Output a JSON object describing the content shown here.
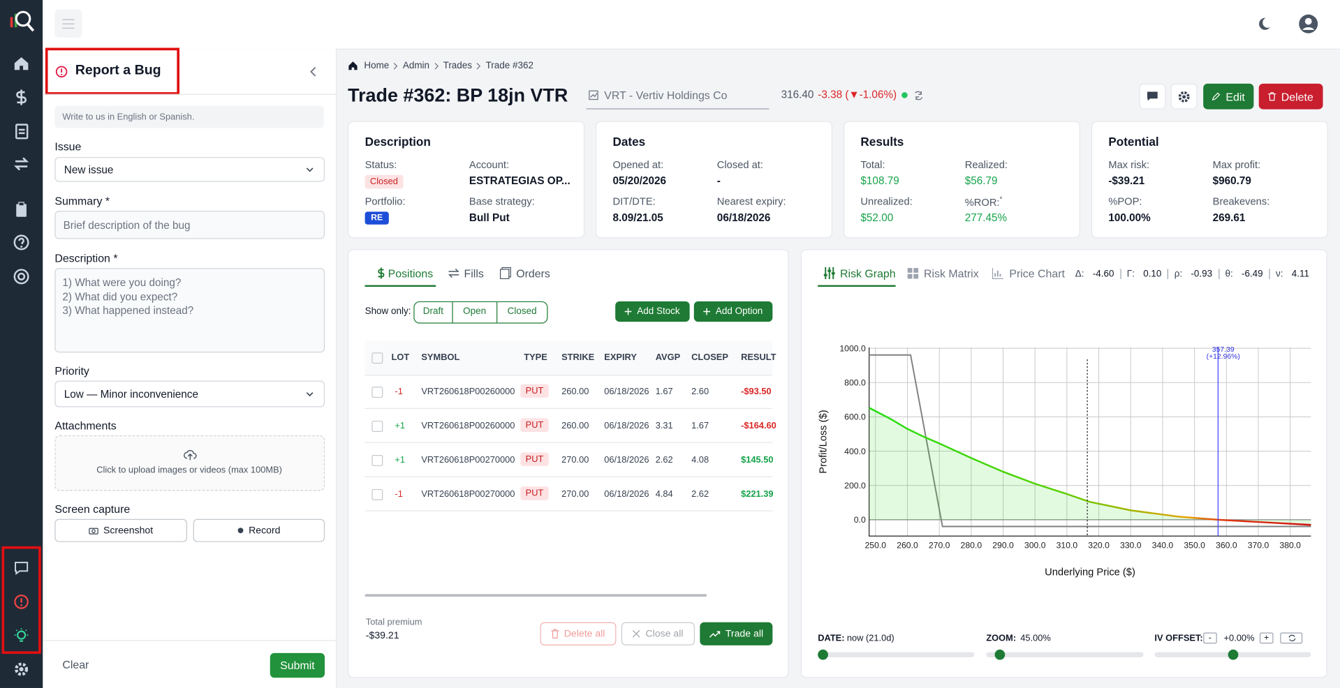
{
  "bug_panel": {
    "title": "Report a Bug",
    "hint": "Write to us in English or Spanish.",
    "issue_label": "Issue",
    "issue_value": "New issue",
    "summary_label": "Summary *",
    "summary_placeholder": "Brief description of the bug",
    "description_label": "Description *",
    "description_placeholder": [
      "1) What were you doing?",
      "2) What did you expect?",
      "3) What happened instead?"
    ],
    "priority_label": "Priority",
    "priority_value": "Low — Minor inconvenience",
    "attachments_label": "Attachments",
    "upload_text": "Click to upload images or videos (max 100MB)",
    "screen_capture_label": "Screen capture",
    "screenshot_button": "Screenshot",
    "record_button": "Record",
    "clear_button": "Clear",
    "submit_button": "Submit"
  },
  "breadcrumb": [
    "Home",
    "Admin",
    "Trades",
    "Trade #362"
  ],
  "trade": {
    "title": "Trade #362: BP 18jn VTR",
    "symbol": "VRT - Vertiv Holdings Co",
    "price": "316.40",
    "change": "-3.38 (▼-1.06%)",
    "edit": "Edit",
    "delete": "Delete"
  },
  "cards": [
    {
      "title": "Description",
      "fields": [
        {
          "label": "Status:",
          "value": "Closed"
        },
        {
          "label": "Account:",
          "value": "ESTRATEGIAS OP..."
        },
        {
          "label": "Portfolio:",
          "value": "RE"
        },
        {
          "label": "Base strategy:",
          "value": "Bull Put"
        }
      ]
    },
    {
      "title": "Dates",
      "fields": [
        {
          "label": "Opened at:",
          "value": "05/20/2026"
        },
        {
          "label": "Closed at:",
          "value": "-"
        },
        {
          "label": "DIT/DTE:",
          "value": "8.09/21.05"
        },
        {
          "label": "Nearest expiry:",
          "value": "06/18/2026"
        }
      ]
    },
    {
      "title": "Results",
      "fields": [
        {
          "label": "Total:",
          "value": "$108.79"
        },
        {
          "label": "Realized:",
          "value": "$56.79"
        },
        {
          "label": "Unrealized:",
          "value": "$52.00"
        },
        {
          "label": "%ROR:",
          "note": "*",
          "value": "277.45%"
        }
      ]
    },
    {
      "title": "Potential",
      "fields": [
        {
          "label": "Max risk:",
          "value": "-$39.21"
        },
        {
          "label": "Max profit:",
          "value": "$960.79"
        },
        {
          "label": "%POP:",
          "value": "100.00%"
        },
        {
          "label": "Breakevens:",
          "value": "269.61"
        }
      ]
    }
  ],
  "positions": {
    "tabs": [
      "Positions",
      "Fills",
      "Orders"
    ],
    "show_only_label": "Show only:",
    "filters": [
      "Draft",
      "Open",
      "Closed"
    ],
    "add_stock": "Add Stock",
    "add_option": "Add Option",
    "columns": [
      "LOT",
      "SYMBOL",
      "TYPE",
      "STRIKE",
      "EXPIRY",
      "AVGP",
      "CLOSEP",
      "RESULT"
    ],
    "rows": [
      [
        "-1",
        "VRT260618P00260000",
        "PUT",
        "260.00",
        "06/18/2026",
        "1.67",
        "2.60",
        "-$93.50"
      ],
      [
        "+1",
        "VRT260618P00260000",
        "PUT",
        "260.00",
        "06/18/2026",
        "3.31",
        "1.67",
        "-$164.60"
      ],
      [
        "+1",
        "VRT260618P00270000",
        "PUT",
        "270.00",
        "06/18/2026",
        "2.62",
        "4.08",
        "$145.50"
      ],
      [
        "-1",
        "VRT260618P00270000",
        "PUT",
        "270.00",
        "06/18/2026",
        "4.84",
        "2.62",
        "$221.39"
      ]
    ],
    "total_label": "Total premium",
    "total": "-$39.21",
    "delete_all": "Delete all",
    "close_all": "Close all",
    "trade_all": "Trade all"
  },
  "risk": {
    "tabs": [
      "Risk Graph",
      "Risk Matrix",
      "Price Chart"
    ],
    "greeks": [
      {
        "label": "Δ:",
        "value": "-4.60"
      },
      {
        "label": "Γ:",
        "value": "0.10"
      },
      {
        "label": "ρ:",
        "value": "-0.93"
      },
      {
        "label": "θ:",
        "value": "-6.49"
      },
      {
        "label": "ν:",
        "value": "4.11"
      }
    ],
    "controls": {
      "date_label": "DATE:",
      "date_value": "now (21.0d)",
      "zoom_label": "ZOOM:",
      "zoom_value": "45.00%",
      "iv_label": "IV OFFSET:",
      "iv_minus": "-",
      "iv_value": "+0.00%",
      "iv_plus": "+"
    },
    "chart_data": {
      "type": "line",
      "x_label": "Underlying Price ($)",
      "y_label": "Profit/Loss ($)",
      "grid": true,
      "xlim": [
        248,
        386.5
      ],
      "ylim": [
        -95,
        1005
      ],
      "xticks": [
        {
          "value": 250,
          "label": "250.0"
        },
        {
          "value": 260,
          "label": "260.0"
        },
        {
          "value": 270,
          "label": "270.0"
        },
        {
          "value": 280,
          "label": "280.0"
        },
        {
          "value": 290,
          "label": "290.0"
        },
        {
          "value": 300,
          "label": "300.0"
        },
        {
          "value": 310,
          "label": "310.0"
        },
        {
          "value": 320,
          "label": "320.0"
        },
        {
          "value": 330,
          "label": "330.0"
        },
        {
          "value": 340,
          "label": "340.0"
        },
        {
          "value": 350,
          "label": "350.0"
        },
        {
          "value": 360,
          "label": "360.0"
        },
        {
          "value": 370,
          "label": "370.0"
        },
        {
          "value": 380,
          "label": "380.0"
        }
      ],
      "yticks": [
        {
          "value": 0,
          "label": "0.0"
        },
        {
          "value": 200,
          "label": "200.0"
        },
        {
          "value": 400,
          "label": "400.0"
        },
        {
          "value": 600,
          "label": "600.0"
        },
        {
          "value": 800,
          "label": "800.0"
        },
        {
          "value": 1000,
          "label": "1000.0"
        }
      ],
      "series": [
        {
          "color": "#808080",
          "x": [
            248,
            261,
            271,
            386.5
          ],
          "values": [
            960.79,
            960.79,
            -39.21,
            -39.21
          ]
        },
        {
          "color": "#22dd11",
          "x": [
            248,
            255,
            260,
            265,
            270,
            280,
            290,
            300,
            310,
            317,
            330,
            345,
            357.39,
            372,
            386.5
          ],
          "values": [
            653,
            585,
            530,
            485,
            445,
            360,
            280,
            210,
            150,
            105,
            55,
            18,
            0,
            -15,
            -30
          ]
        }
      ],
      "current_price": 316.4,
      "target_price": 357.39,
      "target_change": "(+12.96%)"
    }
  }
}
